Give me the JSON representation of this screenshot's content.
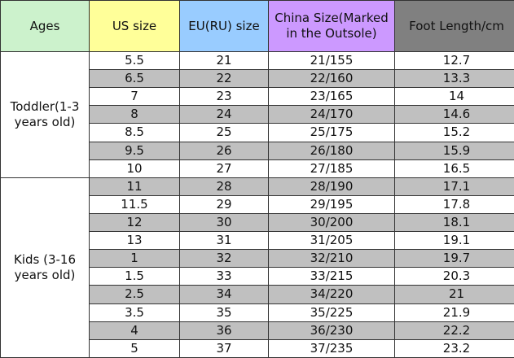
{
  "headers": [
    "Ages",
    "US size",
    "EU(RU) size",
    "China Size(Marked in the Outsole)",
    "Foot Length/cm"
  ],
  "header_colors": [
    "#ccf2cc",
    "#ffff99",
    "#99ccff",
    "#cc99ff",
    "#808080"
  ],
  "stripe_color": "#c0c0c0",
  "groups": [
    {
      "label": "Toddler(1-3 years old)",
      "rows": [
        [
          "5.5",
          "21",
          "21/155",
          "12.7"
        ],
        [
          "6.5",
          "22",
          "22/160",
          "13.3"
        ],
        [
          "7",
          "23",
          "23/165",
          "14"
        ],
        [
          "8",
          "24",
          "24/170",
          "14.6"
        ],
        [
          "8.5",
          "25",
          "25/175",
          "15.2"
        ],
        [
          "9.5",
          "26",
          "26/180",
          "15.9"
        ],
        [
          "10",
          "27",
          "27/185",
          "16.5"
        ]
      ]
    },
    {
      "label": "Kids (3-16 years old)",
      "rows": [
        [
          "11",
          "28",
          "28/190",
          "17.1"
        ],
        [
          "11.5",
          "29",
          "29/195",
          "17.8"
        ],
        [
          "12",
          "30",
          "30/200",
          "18.1"
        ],
        [
          "13",
          "31",
          "31/205",
          "19.1"
        ],
        [
          "1",
          "32",
          "32/210",
          "19.7"
        ],
        [
          "1.5",
          "33",
          "33/215",
          "20.3"
        ],
        [
          "2.5",
          "34",
          "34/220",
          "21"
        ],
        [
          "3.5",
          "35",
          "35/225",
          "21.9"
        ],
        [
          "4",
          "36",
          "36/230",
          "22.2"
        ],
        [
          "5",
          "37",
          "37/235",
          "23.2"
        ]
      ]
    }
  ]
}
